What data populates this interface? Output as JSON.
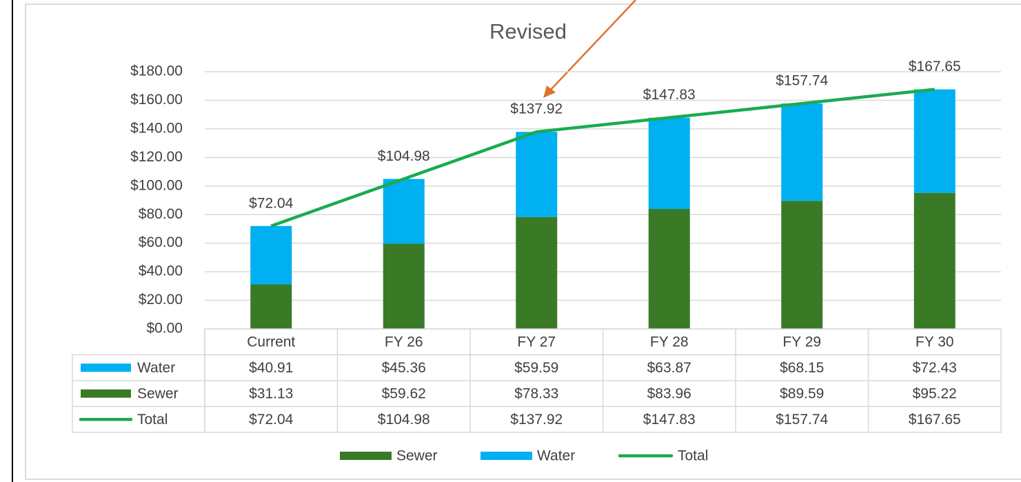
{
  "chart_data": {
    "type": "bar",
    "stacked": true,
    "title": "Revised",
    "categories": [
      "Current",
      "FY 26",
      "FY 27",
      "FY 28",
      "FY 29",
      "FY 30"
    ],
    "series": [
      {
        "name": "Sewer",
        "type": "bar",
        "color": "#3a7a27",
        "values": [
          31.13,
          59.62,
          78.33,
          83.96,
          89.59,
          95.22
        ],
        "value_labels": [
          "$31.13",
          "$59.62",
          "$78.33",
          "$83.96",
          "$89.59",
          "$95.22"
        ]
      },
      {
        "name": "Water",
        "type": "bar",
        "color": "#00b0f0",
        "values": [
          40.91,
          45.36,
          59.59,
          63.87,
          68.15,
          72.43
        ],
        "value_labels": [
          "$40.91",
          "$45.36",
          "$59.59",
          "$63.87",
          "$68.15",
          "$72.43"
        ]
      },
      {
        "name": "Total",
        "type": "line",
        "color": "#1aab4f",
        "values": [
          72.04,
          104.98,
          137.92,
          147.83,
          157.74,
          167.65
        ],
        "value_labels": [
          "$72.04",
          "$104.98",
          "$137.92",
          "$147.83",
          "$157.74",
          "$167.65"
        ]
      }
    ],
    "ylim": [
      0,
      180
    ],
    "yticks": [
      {
        "value": 0,
        "label": "$0.00"
      },
      {
        "value": 20,
        "label": "$20.00"
      },
      {
        "value": 40,
        "label": "$40.00"
      },
      {
        "value": 60,
        "label": "$60.00"
      },
      {
        "value": 80,
        "label": "$80.00"
      },
      {
        "value": 100,
        "label": "$100.00"
      },
      {
        "value": 120,
        "label": "$120.00"
      },
      {
        "value": 140,
        "label": "$140.00"
      },
      {
        "value": 160,
        "label": "$160.00"
      },
      {
        "value": 180,
        "label": "$180.00"
      }
    ],
    "grid": true,
    "data_table": true,
    "legend": "bottom"
  }
}
